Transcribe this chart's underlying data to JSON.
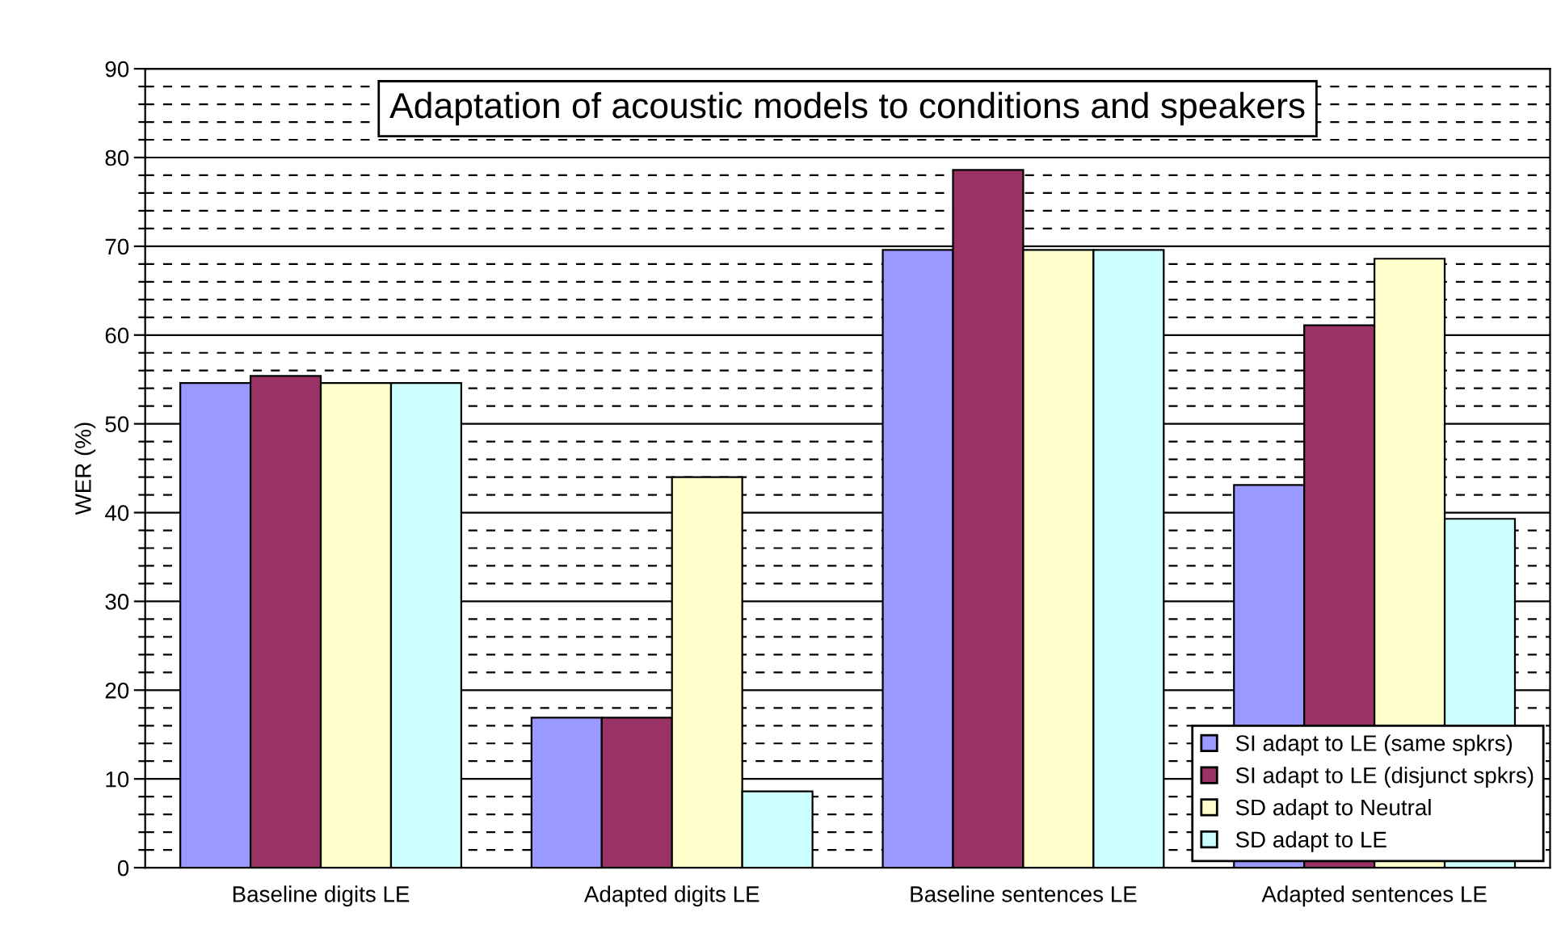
{
  "chart_data": {
    "type": "bar",
    "title": "Adaptation of acoustic models to conditions and speakers",
    "ylabel": "WER (%)",
    "categories": [
      "Baseline digits LE",
      "Adapted digits LE",
      "Baseline sentences LE",
      "Adapted sentences LE"
    ],
    "series": [
      {
        "name": "SI adapt to LE (same spkrs)",
        "color": "#9999ff",
        "values": [
          54.6,
          16.9,
          69.6,
          43.1
        ]
      },
      {
        "name": "SI adapt to LE (disjunct spkrs)",
        "color": "#993366",
        "values": [
          55.4,
          16.9,
          78.6,
          61.1
        ]
      },
      {
        "name": "SD adapt to Neutral",
        "color": "#ffffcc",
        "values": [
          54.6,
          44.0,
          69.6,
          68.6
        ]
      },
      {
        "name": "SD adapt to LE",
        "color": "#ccffff",
        "values": [
          54.6,
          8.6,
          69.6,
          39.3
        ]
      }
    ],
    "ylim": [
      0,
      90
    ],
    "yticks": [
      0,
      {
        "value": 2,
        "label": null
      },
      {
        "value": 4,
        "label": null
      },
      {
        "value": 6,
        "label": null
      },
      {
        "value": 8,
        "label": null
      },
      10,
      {
        "value": 12,
        "label": null
      },
      {
        "value": 14,
        "label": null
      },
      {
        "value": 16,
        "label": null
      },
      {
        "value": 18,
        "label": null
      },
      20,
      {
        "value": 22,
        "label": null
      },
      {
        "value": 24,
        "label": null
      },
      {
        "value": 26,
        "label": null
      },
      {
        "value": 28,
        "label": null
      },
      30,
      {
        "value": 32,
        "label": null
      },
      {
        "value": 34,
        "label": null
      },
      {
        "value": 36,
        "label": null
      },
      {
        "value": 38,
        "label": null
      },
      40,
      {
        "value": 42,
        "label": null
      },
      {
        "value": 44,
        "label": null
      },
      {
        "value": 46,
        "label": null
      },
      {
        "value": 48,
        "label": null
      },
      50,
      {
        "value": 52,
        "label": null
      },
      {
        "value": 54,
        "label": null
      },
      {
        "value": 56,
        "label": null
      },
      {
        "value": 58,
        "label": null
      },
      60,
      {
        "value": 62,
        "label": null
      },
      {
        "value": 64,
        "label": null
      },
      {
        "value": 66,
        "label": null
      },
      {
        "value": 68,
        "label": null
      },
      70,
      {
        "value": 72,
        "label": null
      },
      {
        "value": 74,
        "label": null
      },
      {
        "value": 76,
        "label": null
      },
      {
        "value": 78,
        "label": null
      },
      80,
      {
        "value": 82,
        "label": null
      },
      {
        "value": 84,
        "label": null
      },
      {
        "value": 86,
        "label": null
      },
      {
        "value": 88,
        "label": null
      },
      90
    ],
    "grid": "y",
    "legend": "bottom right"
  }
}
